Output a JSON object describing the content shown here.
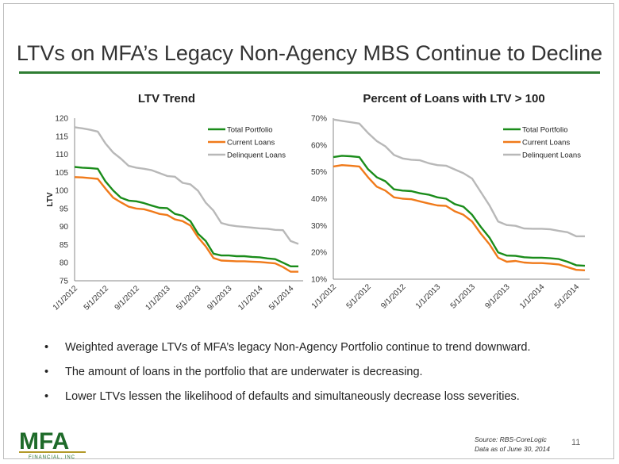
{
  "slide": {
    "title": "LTVs on MFA’s Legacy Non-Agency MBS Continue to Decline",
    "bullets": [
      "Weighted average LTVs of MFA’s legacy Non-Agency Portfolio continue to trend downward.",
      "The amount of loans in the portfolio that are underwater is decreasing.",
      "Lower LTVs lessen the likelihood of defaults and simultaneously decrease loss severities."
    ],
    "bullet_char": "•",
    "logo": {
      "text": "MFA",
      "subtext": "FINANCIAL, INC",
      "color": "#1f6b2a",
      "bar_color": "#b39a2a"
    },
    "source_line1": "Source: RBS-CoreLogic",
    "source_line2": "Data as of June 30, 2014",
    "page_number": "11",
    "accent_color": "#2e7d32"
  },
  "chart_data": [
    {
      "type": "line",
      "title": "LTV Trend",
      "ylabel": "LTV",
      "ylim": [
        75,
        120
      ],
      "yticks": [
        "75",
        "80",
        "85",
        "90",
        "95",
        "100",
        "105",
        "110",
        "115",
        "120"
      ],
      "xticks": [
        "1/1/2012",
        "5/1/2012",
        "9/1/2012",
        "1/1/2013",
        "5/1/2013",
        "9/1/2013",
        "1/1/2014",
        "5/1/2014"
      ],
      "x": [
        "2012-01",
        "2012-02",
        "2012-03",
        "2012-04",
        "2012-05",
        "2012-06",
        "2012-07",
        "2012-08",
        "2012-09",
        "2012-10",
        "2012-11",
        "2012-12",
        "2013-01",
        "2013-02",
        "2013-03",
        "2013-04",
        "2013-05",
        "2013-06",
        "2013-07",
        "2013-08",
        "2013-09",
        "2013-10",
        "2013-11",
        "2013-12",
        "2014-01",
        "2014-02",
        "2014-03",
        "2014-04",
        "2014-05",
        "2014-06"
      ],
      "series": [
        {
          "name": "Total Portfolio",
          "color": "#1a8c1a",
          "values": [
            106.5,
            106.3,
            106.2,
            106.0,
            102.5,
            100.0,
            98.0,
            97.2,
            97.0,
            96.5,
            95.8,
            95.2,
            95.1,
            93.5,
            93.0,
            91.5,
            88.0,
            86.0,
            82.5,
            82.0,
            82.0,
            81.8,
            81.8,
            81.6,
            81.5,
            81.2,
            81.0,
            80.0,
            79.0,
            79.0
          ]
        },
        {
          "name": "Current Loans",
          "color": "#f07a1a",
          "values": [
            103.7,
            103.6,
            103.4,
            103.2,
            100.5,
            98.0,
            96.7,
            95.5,
            95.0,
            94.8,
            94.2,
            93.5,
            93.2,
            92.0,
            91.5,
            90.3,
            87.0,
            84.5,
            81.3,
            80.6,
            80.5,
            80.4,
            80.4,
            80.3,
            80.2,
            80.0,
            79.8,
            78.8,
            77.5,
            77.5
          ]
        },
        {
          "name": "Delinquent Loans",
          "color": "#b8b8b8",
          "values": [
            117.5,
            117.2,
            116.8,
            116.3,
            113.0,
            110.5,
            108.8,
            106.8,
            106.3,
            106.0,
            105.6,
            104.8,
            104.0,
            103.8,
            102.1,
            101.7,
            99.9,
            96.6,
            94.4,
            91.0,
            90.4,
            90.1,
            89.9,
            89.7,
            89.5,
            89.4,
            89.1,
            89.0,
            86.0,
            85.2
          ]
        }
      ],
      "legend": "top-right"
    },
    {
      "type": "line",
      "title": "Percent of Loans with LTV > 100",
      "ylim": [
        10,
        70
      ],
      "yticks": [
        "10%",
        "20%",
        "30%",
        "40%",
        "50%",
        "60%",
        "70%"
      ],
      "xticks": [
        "1/1/2012",
        "5/1/2012",
        "9/1/2012",
        "1/1/2013",
        "5/1/2013",
        "9/1/2013",
        "1/1/2014",
        "5/1/2014"
      ],
      "x": [
        "2012-01",
        "2012-02",
        "2012-03",
        "2012-04",
        "2012-05",
        "2012-06",
        "2012-07",
        "2012-08",
        "2012-09",
        "2012-10",
        "2012-11",
        "2012-12",
        "2013-01",
        "2013-02",
        "2013-03",
        "2013-04",
        "2013-05",
        "2013-06",
        "2013-07",
        "2013-08",
        "2013-09",
        "2013-10",
        "2013-11",
        "2013-12",
        "2014-01",
        "2014-02",
        "2014-03",
        "2014-04",
        "2014-05",
        "2014-06"
      ],
      "series": [
        {
          "name": "Total Portfolio",
          "color": "#1a8c1a",
          "values": [
            55.5,
            56.0,
            55.8,
            55.5,
            51.0,
            48.0,
            46.5,
            43.5,
            43.0,
            42.8,
            42.0,
            41.5,
            40.5,
            40.0,
            38.0,
            37.0,
            34.0,
            29.5,
            25.5,
            20.0,
            18.8,
            18.7,
            18.2,
            18.0,
            18.0,
            17.8,
            17.5,
            16.5,
            15.2,
            15.0
          ]
        },
        {
          "name": "Current Loans",
          "color": "#f07a1a",
          "values": [
            52.0,
            52.5,
            52.3,
            52.0,
            48.0,
            44.5,
            43.0,
            40.5,
            40.0,
            39.8,
            39.0,
            38.2,
            37.5,
            37.3,
            35.3,
            34.0,
            31.5,
            27.0,
            23.0,
            18.0,
            16.5,
            16.8,
            16.2,
            16.0,
            16.0,
            15.8,
            15.5,
            14.5,
            13.5,
            13.3
          ]
        },
        {
          "name": "Delinquent Loans",
          "color": "#b8b8b8",
          "values": [
            69.5,
            69.0,
            68.5,
            68.0,
            64.5,
            61.5,
            59.5,
            56.3,
            55.0,
            54.5,
            54.3,
            53.2,
            52.5,
            52.3,
            50.9,
            49.5,
            47.5,
            42.5,
            37.5,
            31.5,
            30.2,
            29.9,
            28.9,
            28.8,
            28.8,
            28.6,
            28.0,
            27.5,
            26.0,
            26.0
          ]
        }
      ],
      "legend": "top-right"
    }
  ]
}
